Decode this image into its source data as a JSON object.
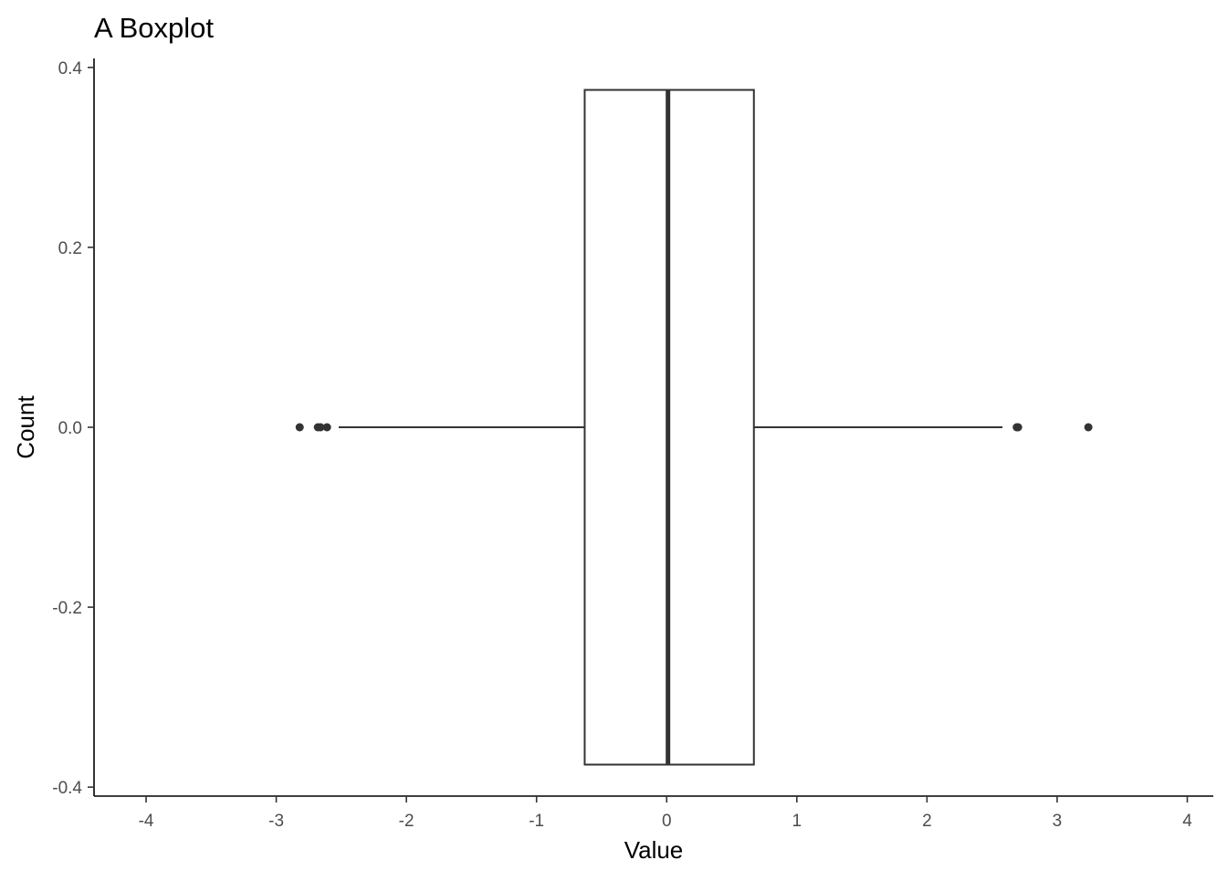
{
  "chart_data": {
    "type": "boxplot",
    "title": "A  Boxplot",
    "xlabel": "Value",
    "ylabel": "Count",
    "xlim": [
      -4.4,
      4.2
    ],
    "ylim": [
      -0.41,
      0.41
    ],
    "x_ticks": [
      -4,
      -3,
      -2,
      -1,
      0,
      1,
      2,
      3,
      4
    ],
    "x_tick_labels": [
      "-4",
      "-3",
      "-2",
      "-1",
      "0",
      "1",
      "2",
      "3",
      "4"
    ],
    "y_ticks": [
      0.4,
      0.2,
      0.0,
      -0.2,
      -0.4
    ],
    "y_tick_labels": [
      "0.4",
      "0.2",
      "0.0",
      "-0.2",
      "-0.4"
    ],
    "grid": false,
    "box": {
      "q1": -0.63,
      "median": 0.01,
      "q3": 0.67,
      "whisker_low": -2.52,
      "whisker_high": 2.58,
      "y_center": 0.0,
      "half_height": 0.375
    },
    "outliers": [
      -2.82,
      -2.68,
      -2.66,
      -2.61,
      2.69,
      2.7,
      3.24
    ],
    "colors": {
      "box_stroke": "#333333",
      "outlier": "#333333",
      "axis": "#000000",
      "tick_label": "#4d4d4d"
    }
  }
}
